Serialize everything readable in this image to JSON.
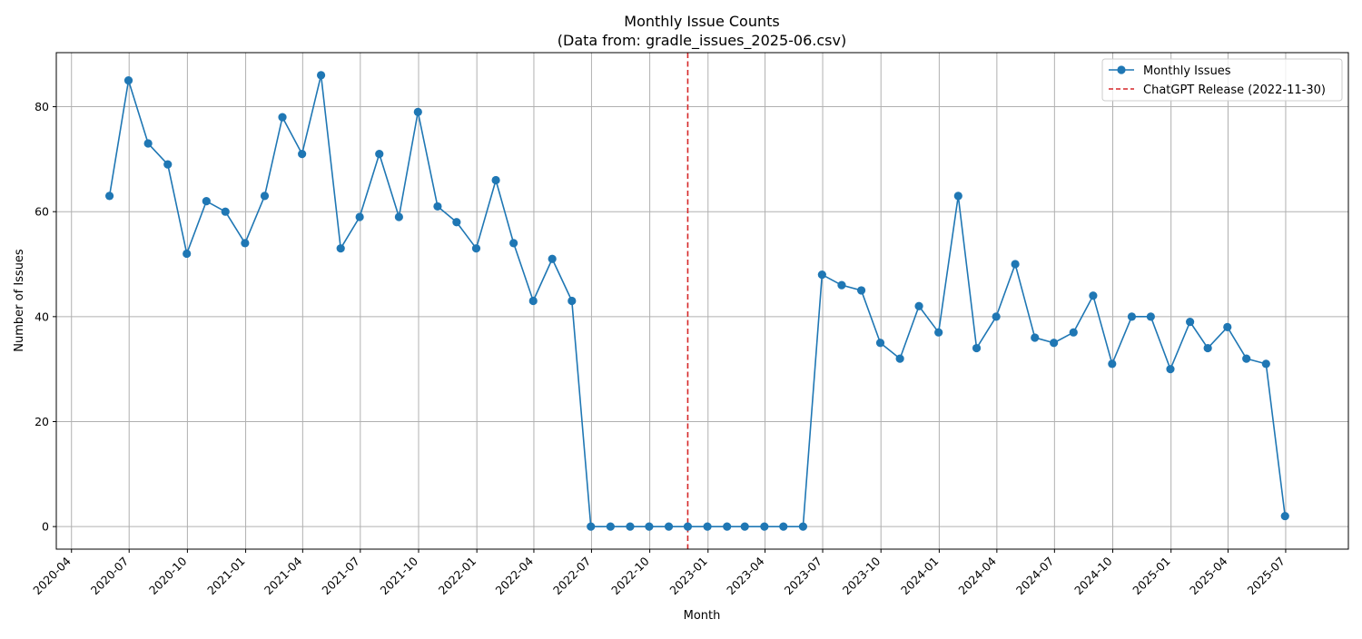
{
  "chart_data": {
    "type": "line",
    "title": "Monthly Issue Counts",
    "subtitle": "(Data from: gradle_issues_2025-06.csv)",
    "xlabel": "Month",
    "ylabel": "Number of Issues",
    "grid": true,
    "legend_position": "top-right",
    "xlim": [
      "2020-03-08",
      "2025-10-08"
    ],
    "ylim": [
      -4.3,
      90.3
    ],
    "y_ticks": [
      0,
      20,
      40,
      60,
      80
    ],
    "x_ticks": [
      "2020-04",
      "2020-07",
      "2020-10",
      "2021-01",
      "2021-04",
      "2021-07",
      "2021-10",
      "2022-01",
      "2022-04",
      "2022-07",
      "2022-10",
      "2023-01",
      "2023-04",
      "2023-07",
      "2023-10",
      "2024-01",
      "2024-04",
      "2024-07",
      "2024-10",
      "2025-01",
      "2025-04",
      "2025-07"
    ],
    "series": [
      {
        "name": "Monthly Issues",
        "color": "#1f77b4",
        "marker": "circle",
        "x": [
          "2020-05-31",
          "2020-06-30",
          "2020-07-31",
          "2020-08-31",
          "2020-09-30",
          "2020-10-31",
          "2020-11-30",
          "2020-12-31",
          "2021-01-31",
          "2021-02-28",
          "2021-03-31",
          "2021-04-30",
          "2021-05-31",
          "2021-06-30",
          "2021-07-31",
          "2021-08-31",
          "2021-09-30",
          "2021-10-31",
          "2021-11-30",
          "2021-12-31",
          "2022-01-31",
          "2022-02-28",
          "2022-03-31",
          "2022-04-30",
          "2022-05-31",
          "2022-06-30",
          "2022-07-31",
          "2022-08-31",
          "2022-09-30",
          "2022-10-31",
          "2022-11-30",
          "2022-12-31",
          "2023-01-31",
          "2023-02-28",
          "2023-03-31",
          "2023-04-30",
          "2023-05-31",
          "2023-06-30",
          "2023-07-31",
          "2023-08-31",
          "2023-09-30",
          "2023-10-31",
          "2023-11-30",
          "2023-12-31",
          "2024-01-31",
          "2024-02-29",
          "2024-03-31",
          "2024-04-30",
          "2024-05-31",
          "2024-06-30",
          "2024-07-31",
          "2024-08-31",
          "2024-09-30",
          "2024-10-31",
          "2024-11-30",
          "2024-12-31",
          "2025-01-31",
          "2025-02-28",
          "2025-03-31",
          "2025-04-30",
          "2025-05-31",
          "2025-06-30"
        ],
        "values": [
          63,
          85,
          73,
          69,
          52,
          62,
          60,
          54,
          63,
          78,
          71,
          86,
          53,
          59,
          71,
          59,
          79,
          61,
          58,
          53,
          66,
          54,
          43,
          51,
          43,
          0,
          0,
          0,
          0,
          0,
          0,
          0,
          0,
          0,
          0,
          0,
          0,
          48,
          46,
          45,
          35,
          32,
          42,
          37,
          63,
          34,
          40,
          50,
          36,
          35,
          37,
          44,
          31,
          40,
          40,
          30,
          39,
          34,
          38,
          32,
          31,
          2
        ]
      }
    ],
    "annotations": [
      {
        "type": "vline",
        "x": "2022-11-30",
        "label": "ChatGPT Release (2022-11-30)",
        "color": "#d62728",
        "style": "dashed"
      }
    ]
  }
}
